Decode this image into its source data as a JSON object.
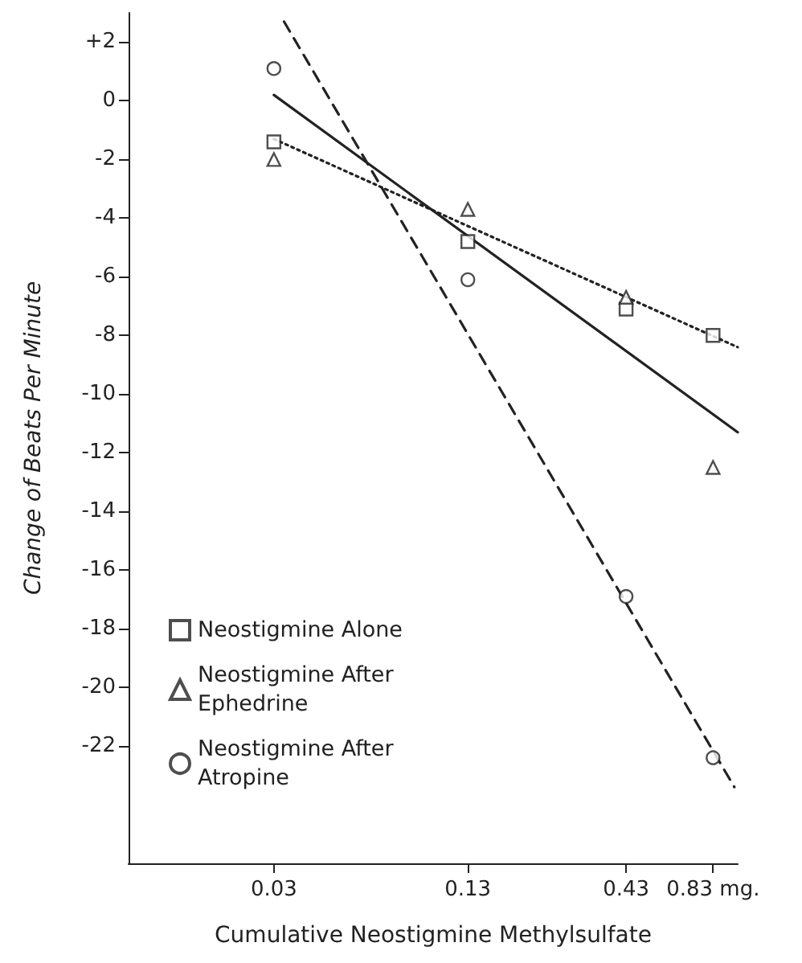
{
  "chart_data": {
    "type": "scatter",
    "xlabel": "Cumulative Neostigmine Methylsulfate",
    "ylabel": "Change of Beats Per Minute",
    "log": "x",
    "xlim": [
      0.01,
      1
    ],
    "xticks": [
      0.03,
      0.13,
      0.43,
      {
        "value": 0.83,
        "label": "0.83 mg."
      }
    ],
    "ylim": [
      -26,
      3
    ],
    "yticks": [
      {
        "value": 2,
        "label": "+2"
      },
      0,
      -2,
      -4,
      -6,
      -8,
      -10,
      -12,
      -14,
      -16,
      -18,
      -20,
      -22
    ],
    "grid": false,
    "legend": "bottom left",
    "series": [
      {
        "name": "Neostigmine Alone",
        "marker": "square",
        "color": "#222222",
        "x": [
          0.03,
          0.13,
          0.43,
          0.83
        ],
        "values": [
          -1.4,
          -4.8,
          -7.1,
          -8.0
        ]
      },
      {
        "type": "line",
        "line_style": "dotted",
        "color": "#222222",
        "x": [
          0.03,
          1
        ],
        "values": [
          -1.3,
          -8.4
        ]
      },
      {
        "name": "Neostigmine After Ephedrine",
        "marker": "triangle",
        "color": "#222222",
        "x": [
          0.03,
          0.13,
          0.43,
          0.83
        ],
        "values": [
          -2.0,
          -3.7,
          -6.7,
          -12.5
        ]
      },
      {
        "type": "line",
        "line_style": "solid",
        "color": "#222222",
        "x": [
          0.03,
          1
        ],
        "values": [
          0.2,
          -11.3
        ]
      },
      {
        "name": "Neostigmine After Atropine",
        "marker": "circle",
        "color": "#222222",
        "x": [
          0.03,
          0.13,
          0.43,
          0.83
        ],
        "values": [
          1.1,
          -6.1,
          -16.9,
          -22.4
        ]
      },
      {
        "type": "line",
        "line_style": "dashed",
        "color": "#222222",
        "x": [
          0.0324,
          0.975
        ],
        "values": [
          2.7,
          -23.4
        ]
      }
    ]
  }
}
